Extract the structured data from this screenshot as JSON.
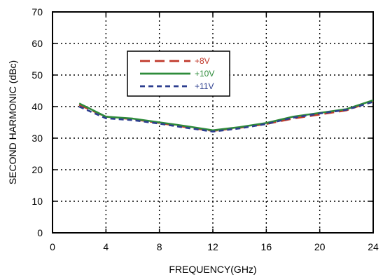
{
  "chart_data": {
    "type": "line",
    "title": "",
    "xlabel": "FREQUENCY(GHz)",
    "ylabel": "SECOND HARMONIC (dBc)",
    "xlim": [
      0,
      24
    ],
    "ylim": [
      0,
      70
    ],
    "xticks": [
      0,
      4,
      8,
      12,
      16,
      20,
      24
    ],
    "yticks": [
      0,
      10,
      20,
      30,
      40,
      50,
      60,
      70
    ],
    "grid": true,
    "legend_position": "upper-center",
    "series": [
      {
        "name": "+8V",
        "color": "#c0392b",
        "dash": "long-dash",
        "x": [
          2,
          4,
          6,
          8,
          10,
          12,
          14,
          16,
          18,
          20,
          22,
          24
        ],
        "y": [
          40.5,
          36.8,
          36.0,
          34.8,
          33.5,
          32.3,
          33.3,
          34.5,
          36.2,
          37.5,
          38.8,
          41.8
        ]
      },
      {
        "name": "+10V",
        "color": "#2e8b3a",
        "dash": "solid",
        "x": [
          2,
          4,
          6,
          8,
          10,
          12,
          14,
          16,
          18,
          20,
          22,
          24
        ],
        "y": [
          41.0,
          36.8,
          36.2,
          35.0,
          33.8,
          32.5,
          33.5,
          34.8,
          36.8,
          38.0,
          39.2,
          42.0
        ]
      },
      {
        "name": "+11V",
        "color": "#2c3e8f",
        "dash": "short-dash",
        "x": [
          2,
          4,
          6,
          8,
          10,
          12,
          14,
          16,
          18,
          20,
          22,
          24
        ],
        "y": [
          40.0,
          36.3,
          35.7,
          34.6,
          33.3,
          32.1,
          33.1,
          34.5,
          36.5,
          37.8,
          39.0,
          41.5
        ]
      }
    ]
  }
}
